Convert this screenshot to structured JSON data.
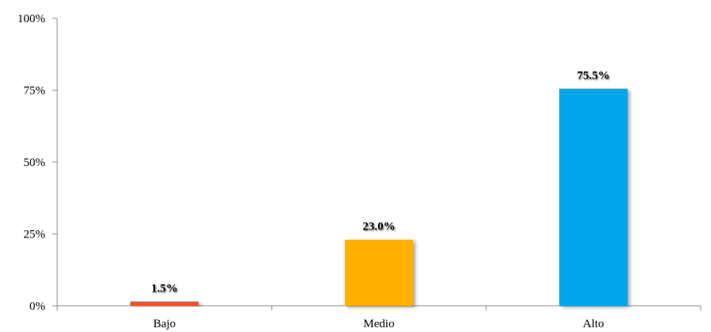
{
  "chart_data": {
    "type": "bar",
    "categories": [
      "Bajo",
      "Medio",
      "Alto"
    ],
    "values": [
      1.5,
      23.0,
      75.5
    ],
    "data_labels": [
      "1.5%",
      "23.0%",
      "75.5%"
    ],
    "bar_colors": [
      "#f0522d",
      "#ffb000",
      "#00a6e9"
    ],
    "title": "",
    "xlabel": "",
    "ylabel": "",
    "ylim": [
      0,
      100
    ],
    "yticks": [
      0,
      25,
      50,
      75,
      100
    ],
    "ytick_labels": [
      "0%",
      "25%",
      "50%",
      "75%",
      "100%"
    ],
    "grid": false,
    "legend": "none"
  }
}
